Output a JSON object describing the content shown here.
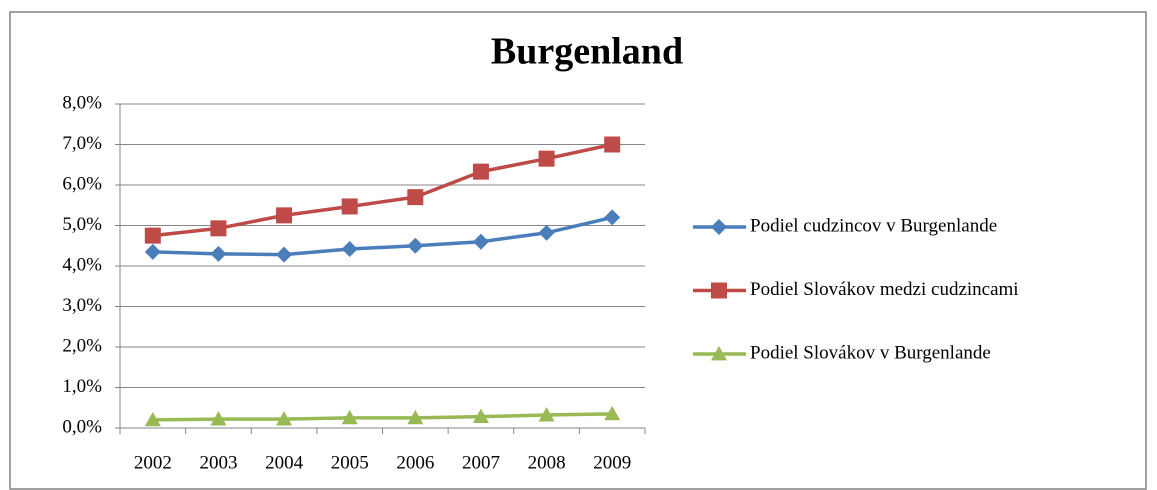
{
  "chart_data": {
    "type": "line",
    "title": "Burgenland",
    "categories": [
      "2002",
      "2003",
      "2004",
      "2005",
      "2006",
      "2007",
      "2008",
      "2009"
    ],
    "series": [
      {
        "name": "Podiel cudzincov v Burgenlande",
        "color": "#4a7ebb",
        "marker": "diamond",
        "values": [
          4.35,
          4.3,
          4.28,
          4.42,
          4.5,
          4.6,
          4.82,
          5.2
        ]
      },
      {
        "name": "Podiel Slovákov medzi cudzincami",
        "color": "#be4b48",
        "marker": "square",
        "values": [
          4.75,
          4.93,
          5.25,
          5.47,
          5.7,
          6.33,
          6.65,
          7.0
        ]
      },
      {
        "name": "Podiel Slovákov v Burgenlande",
        "color": "#98b954",
        "marker": "triangle",
        "values": [
          0.2,
          0.22,
          0.22,
          0.25,
          0.25,
          0.28,
          0.32,
          0.35
        ]
      }
    ],
    "ylim": [
      0,
      8
    ],
    "yticks": [
      {
        "value": 0,
        "label": "0,0%"
      },
      {
        "value": 1,
        "label": "1,0%"
      },
      {
        "value": 2,
        "label": "2,0%"
      },
      {
        "value": 3,
        "label": "3,0%"
      },
      {
        "value": 4,
        "label": "4,0%"
      },
      {
        "value": 5,
        "label": "5,0%"
      },
      {
        "value": 6,
        "label": "6,0%"
      },
      {
        "value": 7,
        "label": "7,0%"
      },
      {
        "value": 8,
        "label": "8,0%"
      }
    ],
    "grid": true,
    "legend": "right"
  }
}
